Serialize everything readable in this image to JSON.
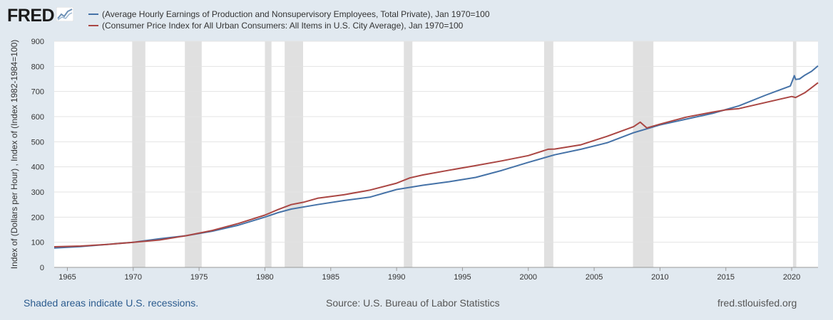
{
  "logo": {
    "text": "FRED",
    "icon": "fred-chart-logo-icon"
  },
  "chart_data": {
    "type": "line",
    "title": "",
    "ylabel": "Index of (Dollars per Hour) , Index of (Index 1982-1984=100)",
    "xlabel": "",
    "xlim": [
      1964.0,
      2022.0
    ],
    "ylim": [
      0,
      900
    ],
    "yticks": [
      0,
      100,
      200,
      300,
      400,
      500,
      600,
      700,
      800,
      900
    ],
    "xticks": [
      1965,
      1970,
      1975,
      1980,
      1985,
      1990,
      1995,
      2000,
      2005,
      2010,
      2015,
      2020
    ],
    "grid": true,
    "legend_position": "top-left",
    "recessions": [
      [
        1969.92,
        1970.92
      ],
      [
        1973.92,
        1975.2
      ],
      [
        1980.0,
        1980.5
      ],
      [
        1981.5,
        1982.9
      ],
      [
        1990.55,
        1991.2
      ],
      [
        2001.2,
        2001.9
      ],
      [
        2007.95,
        2009.5
      ],
      [
        2020.1,
        2020.35
      ]
    ],
    "series": [
      {
        "name": "(Average Hourly Earnings of Production and Nonsupervisory Employees, Total Private), Jan 1970=100",
        "color": "#4572a7",
        "x": [
          1964,
          1966,
          1968,
          1970,
          1972,
          1974,
          1976,
          1978,
          1980,
          1981,
          1982,
          1984,
          1986,
          1988,
          1990,
          1992,
          1994,
          1996,
          1998,
          2000,
          2002,
          2004,
          2006,
          2008,
          2010,
          2012,
          2014,
          2016,
          2018,
          2019.9,
          2020.2,
          2020.3,
          2020.6,
          2021,
          2021.5,
          2022
        ],
        "values": [
          77,
          83,
          91,
          100,
          114,
          126,
          144,
          168,
          200,
          218,
          232,
          250,
          266,
          280,
          310,
          327,
          341,
          358,
          386,
          418,
          448,
          470,
          496,
          536,
          567,
          590,
          613,
          643,
          685,
          722,
          763,
          748,
          750,
          765,
          780,
          802
        ]
      },
      {
        "name": "(Consumer Price Index for All Urban Consumers: All Items in U.S. City Average), Jan 1970=100",
        "color": "#aa4643",
        "x": [
          1964,
          1966,
          1968,
          1970,
          1972,
          1974,
          1976,
          1978,
          1980,
          1981,
          1982,
          1983,
          1984,
          1986,
          1988,
          1990,
          1991,
          1992,
          1994,
          1996,
          1998,
          2000,
          2001.5,
          2002,
          2004,
          2006,
          2008,
          2008.5,
          2009,
          2010,
          2012,
          2014,
          2015,
          2016,
          2018,
          2020,
          2020.3,
          2021,
          2021.5,
          2022
        ],
        "values": [
          82,
          85,
          91,
          100,
          109,
          126,
          147,
          175,
          208,
          230,
          250,
          260,
          275,
          289,
          308,
          335,
          356,
          368,
          387,
          405,
          424,
          445,
          470,
          471,
          488,
          522,
          560,
          578,
          555,
          570,
          598,
          618,
          627,
          632,
          656,
          680,
          676,
          695,
          715,
          735
        ]
      }
    ]
  },
  "footer": {
    "recessions_note": "Shaded areas indicate U.S. recessions.",
    "source": "Source: U.S. Bureau of Labor Statistics",
    "site": "fred.stlouisfed.org"
  }
}
